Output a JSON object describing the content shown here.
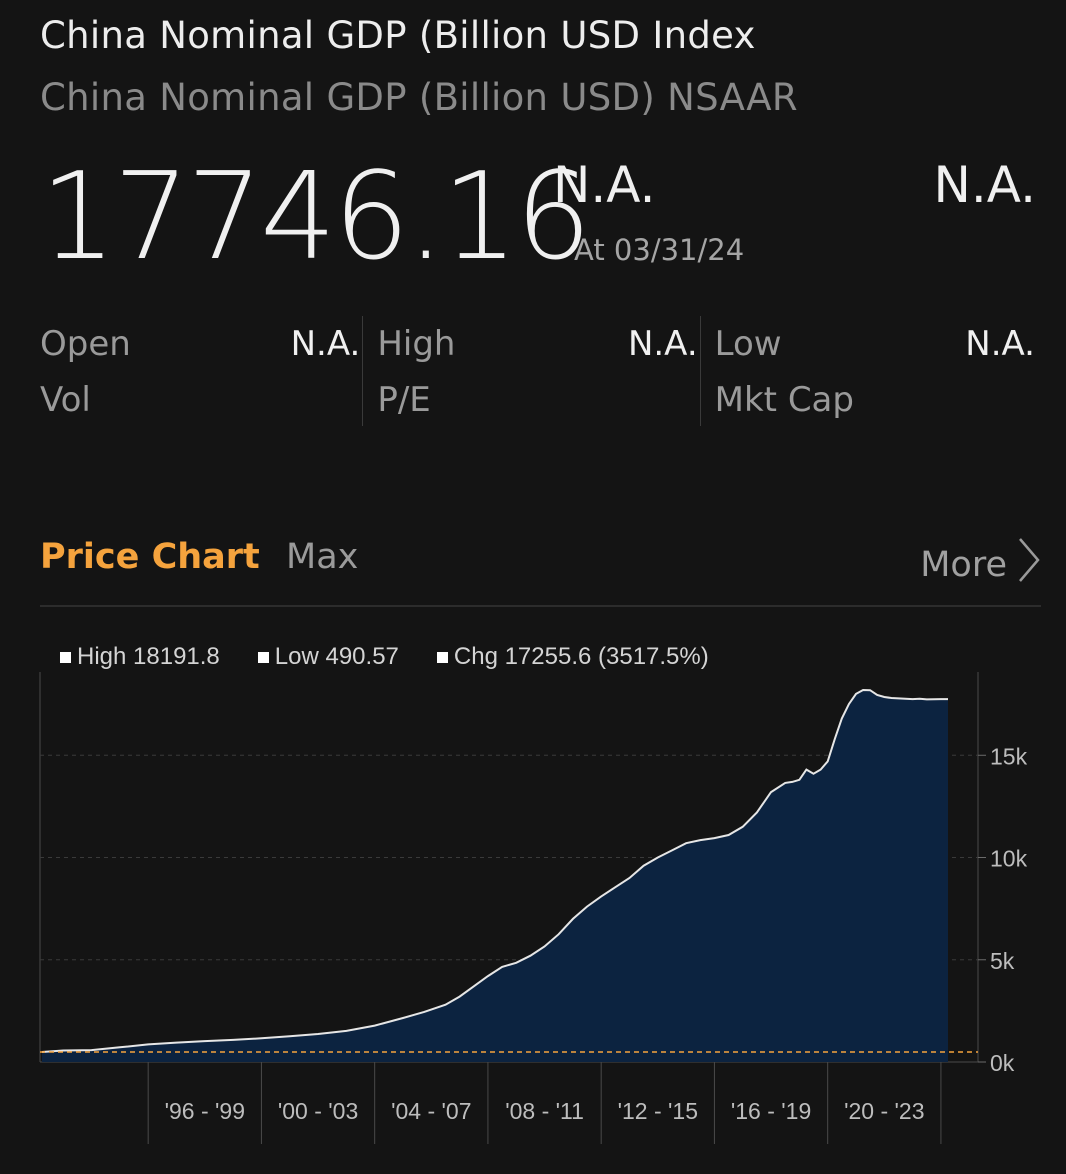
{
  "header": {
    "title": "China Nominal GDP (Billion USD Index",
    "subtitle": "China Nominal GDP (Billion USD) NSAAR"
  },
  "quote": {
    "price": "17746.16",
    "change_abs": "N.A.",
    "as_of": "At 03/31/24",
    "change_pct": "N.A."
  },
  "stats": [
    {
      "rows": [
        {
          "label": "Open",
          "value": "N.A."
        },
        {
          "label": "Vol",
          "value": ""
        }
      ]
    },
    {
      "rows": [
        {
          "label": "High",
          "value": "N.A."
        },
        {
          "label": "P/E",
          "value": ""
        }
      ]
    },
    {
      "rows": [
        {
          "label": "Low",
          "value": "N.A."
        },
        {
          "label": "Mkt Cap",
          "value": ""
        }
      ]
    }
  ],
  "tabs": {
    "active": "Price Chart",
    "range": "Max",
    "more": "More"
  },
  "legend": {
    "high": "High 18191.8",
    "low": "Low 490.57",
    "chg": "Chg 17255.6 (3517.5%)"
  },
  "colors": {
    "background": "#141414",
    "accent": "#f5a33d",
    "area_fill": "#0c2340",
    "line": "#e6e6e6",
    "low_line": "#f5a33d"
  },
  "chart_data": {
    "type": "area",
    "x_unit": "year",
    "ylim": [
      0,
      18191.8
    ],
    "yticks": [
      0,
      5000,
      10000,
      15000
    ],
    "ytick_labels": [
      "0k",
      "5k",
      "10k",
      "15k"
    ],
    "xbands": [
      "'96 - '99",
      "'00 - '03",
      "'04 - '07",
      "'08 - '11",
      "'12 - '15",
      "'16 - '19",
      "'20 - '23"
    ],
    "xband_starts": [
      1996,
      2000,
      2004,
      2008,
      2012,
      2016,
      2020,
      2024
    ],
    "xlim": [
      1992.25,
      2024.25
    ],
    "low_value": 490.57,
    "high_value": 18191.8,
    "grid": true,
    "x": [
      1992.25,
      1993,
      1994,
      1995,
      1996,
      1997,
      1998,
      1999,
      2000,
      2001,
      2002,
      2003,
      2004,
      2005,
      2005.75,
      2006.5,
      2007,
      2007.5,
      2008,
      2008.5,
      2009,
      2009.5,
      2010,
      2010.5,
      2011,
      2011.5,
      2012,
      2012.5,
      2013,
      2013.5,
      2014,
      2014.5,
      2015,
      2015.5,
      2016,
      2016.5,
      2017,
      2017.5,
      2018,
      2018.5,
      2018.75,
      2019,
      2019.25,
      2019.5,
      2019.75,
      2020,
      2020.25,
      2020.5,
      2020.75,
      2021,
      2021.25,
      2021.5,
      2021.75,
      2022,
      2022.25,
      2022.5,
      2022.75,
      2023,
      2023.25,
      2023.5,
      2023.75,
      2024,
      2024.25
    ],
    "y": [
      490.57,
      560,
      580,
      720,
      860,
      950,
      1020,
      1080,
      1160,
      1260,
      1370,
      1520,
      1780,
      2150,
      2450,
      2800,
      3200,
      3700,
      4200,
      4650,
      4850,
      5200,
      5650,
      6250,
      7000,
      7600,
      8100,
      8550,
      9000,
      9600,
      10000,
      10350,
      10700,
      10850,
      10950,
      11100,
      11500,
      12200,
      13200,
      13650,
      13700,
      13800,
      14300,
      14100,
      14300,
      14700,
      15800,
      16800,
      17500,
      18000,
      18191.8,
      18180,
      17950,
      17850,
      17800,
      17780,
      17760,
      17746.16,
      17760,
      17730,
      17740,
      17746.16,
      17746.16
    ]
  }
}
